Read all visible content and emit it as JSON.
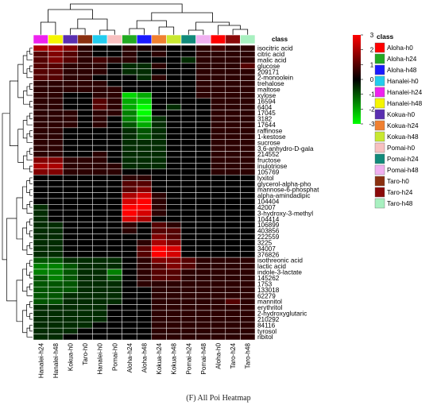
{
  "caption": "(F) All Poi Heatmap",
  "chart_data": {
    "type": "heatmap",
    "title": "",
    "columns": [
      "Hanalei-h24",
      "Hanalei-h48",
      "Kokua-h0",
      "Taro-h0",
      "Hanalei-h0",
      "Pomai-h0",
      "Aloha-h24",
      "Aloha-h48",
      "Kokua-h24",
      "Kokua-h48",
      "Pomai-h24",
      "Pomai-h48",
      "Aloha-h0",
      "Taro-h24",
      "Taro-h48"
    ],
    "column_classes": [
      "Hanalei-h24",
      "Hanalei-h48",
      "Kokua-h0",
      "Taro-h0",
      "Hanalei-h0",
      "Pomai-h0",
      "Aloha-h24",
      "Aloha-h48",
      "Kokua-h24",
      "Kokua-h48",
      "Pomai-h24",
      "Pomai-h48",
      "Aloha-h0",
      "Taro-h24",
      "Taro-h48"
    ],
    "rows": [
      "isocitric acid",
      "citric acid",
      "malic acid",
      "glucose",
      "209171",
      "2-monoolein",
      "trehalose",
      "maltose",
      "xylose",
      "16594",
      "6404",
      "17045",
      "3182",
      "17644",
      "raffinose",
      "1-kestose",
      "sucrose",
      "3,6-anhydro-D-gala",
      "214552",
      "fructose",
      "inulotriose",
      "105769",
      "lyxitol",
      "glycerol-alpha-pho",
      "mannose-6-phosphat",
      "alpha-amindadipic",
      "104404",
      "42007",
      "3-hydroxy-3-methyl",
      "104414",
      "106899",
      "403856",
      "222559",
      "3225",
      "34007",
      "376826",
      "isothreonic acid",
      "lactic acid",
      "indole-3-lactate",
      "145262",
      "1753",
      "133018",
      "62279",
      "mannitol",
      "erythritol",
      "2-hydroxyglutaric",
      "210292",
      "84116",
      "tyrosol",
      "ribitol"
    ],
    "values": [
      [
        2.0,
        2.0,
        1.5,
        0.5,
        0.0,
        0.0,
        0.5,
        0.3,
        0.3,
        0.0,
        0.0,
        0.5,
        0.8,
        0.5,
        0.5
      ],
      [
        1.0,
        1.5,
        1.0,
        0.5,
        0.0,
        0.0,
        0.5,
        0.0,
        0.5,
        0.0,
        0.0,
        0.5,
        0.5,
        0.5,
        0.5
      ],
      [
        1.0,
        1.5,
        1.0,
        0.5,
        0.8,
        0.5,
        0.5,
        0.0,
        0.0,
        0.0,
        -0.5,
        0.5,
        0.5,
        0.5,
        0.5
      ],
      [
        1.0,
        1.0,
        0.5,
        0.5,
        0.5,
        0.0,
        -0.5,
        -0.5,
        0.5,
        0.0,
        0.0,
        0.5,
        0.5,
        0.5,
        1.0
      ],
      [
        1.0,
        1.0,
        0.5,
        0.5,
        0.5,
        0.0,
        -0.5,
        -0.5,
        0.0,
        0.0,
        0.0,
        0.5,
        0.5,
        0.5,
        0.5
      ],
      [
        1.0,
        1.0,
        0.5,
        0.5,
        0.0,
        0.0,
        0.0,
        -0.5,
        0.5,
        0.0,
        0.0,
        0.5,
        0.5,
        0.5,
        0.5
      ],
      [
        0.5,
        0.5,
        0.5,
        0.5,
        0.5,
        0.0,
        0.0,
        0.0,
        0.0,
        0.0,
        0.0,
        0.5,
        0.5,
        0.5,
        0.5
      ],
      [
        0.5,
        0.5,
        0.5,
        0.5,
        0.5,
        0.5,
        0.0,
        0.0,
        0.0,
        0.0,
        0.0,
        0.5,
        0.5,
        0.5,
        0.5
      ],
      [
        0.5,
        0.5,
        0.0,
        0.0,
        0.5,
        0.5,
        -2.5,
        -2.0,
        0.0,
        0.0,
        0.0,
        0.5,
        0.5,
        0.5,
        0.5
      ],
      [
        0.5,
        0.5,
        0.0,
        0.0,
        1.0,
        0.5,
        -2.0,
        -2.5,
        0.0,
        0.0,
        0.0,
        0.0,
        0.5,
        0.5,
        0.5
      ],
      [
        0.5,
        0.5,
        0.0,
        0.0,
        1.0,
        0.5,
        -2.0,
        -3.0,
        0.0,
        -0.5,
        0.0,
        0.0,
        0.5,
        0.5,
        0.5
      ],
      [
        0.5,
        0.5,
        0.5,
        0.0,
        0.5,
        0.5,
        -1.5,
        -3.0,
        0.0,
        0.0,
        0.0,
        0.0,
        0.5,
        0.5,
        0.5
      ],
      [
        0.5,
        0.5,
        0.5,
        0.0,
        0.5,
        0.0,
        -1.5,
        -2.5,
        -0.5,
        0.0,
        0.0,
        0.0,
        0.5,
        0.5,
        0.5
      ],
      [
        0.5,
        0.5,
        0.5,
        0.0,
        0.5,
        0.0,
        -1.0,
        -2.0,
        -0.5,
        0.0,
        0.0,
        0.0,
        0.5,
        0.5,
        0.5
      ],
      [
        0.5,
        0.5,
        0.0,
        0.0,
        0.0,
        0.0,
        -0.5,
        -1.0,
        -0.5,
        0.0,
        0.0,
        0.0,
        0.5,
        0.5,
        0.5
      ],
      [
        0.5,
        0.5,
        0.0,
        0.0,
        0.0,
        0.0,
        -0.5,
        -1.0,
        -0.5,
        0.0,
        0.0,
        0.0,
        0.5,
        0.5,
        0.5
      ],
      [
        0.5,
        0.5,
        0.0,
        0.0,
        0.0,
        0.0,
        -0.5,
        -0.5,
        -0.5,
        0.0,
        0.0,
        0.0,
        0.5,
        0.5,
        0.5
      ],
      [
        0.5,
        0.5,
        0.0,
        0.0,
        0.0,
        0.0,
        -0.5,
        -0.5,
        -0.5,
        0.0,
        0.0,
        0.0,
        0.5,
        0.5,
        0.5
      ],
      [
        0.5,
        0.5,
        0.0,
        0.0,
        0.5,
        0.0,
        -0.5,
        -0.5,
        -0.5,
        0.0,
        0.0,
        0.0,
        0.5,
        0.5,
        0.5
      ],
      [
        1.5,
        1.5,
        0.5,
        0.5,
        0.5,
        0.0,
        -0.5,
        -0.5,
        -0.5,
        0.0,
        0.0,
        0.0,
        0.5,
        0.5,
        0.5
      ],
      [
        2.0,
        2.0,
        0.5,
        0.5,
        0.5,
        0.5,
        -0.5,
        -0.5,
        -0.5,
        0.0,
        0.0,
        0.0,
        0.5,
        0.5,
        0.5
      ],
      [
        1.5,
        1.5,
        0.5,
        0.5,
        0.5,
        0.5,
        0.0,
        0.0,
        0.0,
        0.0,
        0.0,
        0.0,
        0.5,
        0.5,
        0.5
      ],
      [
        0.0,
        0.0,
        0.0,
        0.0,
        0.0,
        0.0,
        0.5,
        0.5,
        0.0,
        0.0,
        0.0,
        0.0,
        0.0,
        0.0,
        0.0
      ],
      [
        0.0,
        0.0,
        0.0,
        0.0,
        0.0,
        0.0,
        1.0,
        1.0,
        0.0,
        0.0,
        0.0,
        0.0,
        0.0,
        0.0,
        0.0
      ],
      [
        0.0,
        0.0,
        0.0,
        0.0,
        0.0,
        0.0,
        1.0,
        1.5,
        0.0,
        0.0,
        0.0,
        0.0,
        0.0,
        0.0,
        0.0
      ],
      [
        0.0,
        0.0,
        0.0,
        0.0,
        0.0,
        0.0,
        2.0,
        2.5,
        0.5,
        0.0,
        0.0,
        0.0,
        0.0,
        0.0,
        0.0
      ],
      [
        0.0,
        0.0,
        0.0,
        0.0,
        0.0,
        0.0,
        2.5,
        3.0,
        0.5,
        0.0,
        0.0,
        0.0,
        0.0,
        0.0,
        0.0
      ],
      [
        -0.5,
        0.0,
        0.0,
        0.0,
        0.0,
        0.0,
        3.0,
        3.0,
        0.5,
        0.0,
        0.0,
        0.0,
        0.0,
        0.0,
        0.0
      ],
      [
        -0.5,
        0.0,
        0.0,
        0.0,
        0.0,
        0.0,
        3.0,
        2.5,
        0.5,
        0.0,
        0.0,
        0.0,
        0.0,
        0.0,
        0.0
      ],
      [
        -0.5,
        0.0,
        0.0,
        0.0,
        0.0,
        0.0,
        2.5,
        2.0,
        0.0,
        0.0,
        0.0,
        0.0,
        0.0,
        0.0,
        0.0
      ],
      [
        -0.5,
        -0.5,
        0.0,
        0.0,
        0.0,
        0.0,
        0.5,
        0.0,
        1.0,
        0.5,
        0.0,
        0.0,
        0.0,
        0.0,
        0.0
      ],
      [
        -0.5,
        -0.5,
        0.0,
        0.0,
        0.0,
        0.0,
        0.5,
        0.0,
        1.0,
        1.0,
        0.0,
        0.0,
        0.0,
        0.0,
        0.0
      ],
      [
        -0.5,
        -0.5,
        0.0,
        0.0,
        0.0,
        0.0,
        0.0,
        0.0,
        1.5,
        1.0,
        0.0,
        0.0,
        0.0,
        0.0,
        0.0
      ],
      [
        -0.5,
        -0.5,
        0.0,
        0.0,
        0.0,
        0.0,
        0.0,
        0.5,
        2.0,
        1.5,
        0.0,
        0.0,
        0.0,
        0.0,
        0.0
      ],
      [
        -0.5,
        -0.5,
        0.0,
        0.0,
        0.0,
        0.0,
        0.0,
        1.0,
        3.0,
        2.5,
        0.0,
        0.0,
        0.0,
        0.0,
        0.0
      ],
      [
        -0.5,
        -0.5,
        0.0,
        0.0,
        0.0,
        0.0,
        0.0,
        1.0,
        3.0,
        2.5,
        0.0,
        0.0,
        0.0,
        0.0,
        0.0
      ],
      [
        -1.0,
        -1.0,
        -0.5,
        -0.5,
        -0.5,
        -0.5,
        0.0,
        0.5,
        1.5,
        1.5,
        1.0,
        0.5,
        0.5,
        0.5,
        0.5
      ],
      [
        -1.5,
        -1.5,
        -1.0,
        -0.5,
        -0.5,
        -0.5,
        0.0,
        0.5,
        1.0,
        1.5,
        1.0,
        0.5,
        0.5,
        0.5,
        0.5
      ],
      [
        -1.5,
        -1.5,
        -1.0,
        -0.5,
        -0.5,
        -1.5,
        0.0,
        0.5,
        1.0,
        1.0,
        0.5,
        0.5,
        0.5,
        0.5,
        0.5
      ],
      [
        -1.0,
        -1.5,
        -1.0,
        -0.5,
        -0.5,
        -1.0,
        0.0,
        0.5,
        1.0,
        1.0,
        0.5,
        0.5,
        0.5,
        0.5,
        0.5
      ],
      [
        -1.0,
        -1.0,
        -1.0,
        -0.5,
        -0.5,
        -0.5,
        0.0,
        0.5,
        0.5,
        0.5,
        0.5,
        0.5,
        0.5,
        0.5,
        0.5
      ],
      [
        -1.0,
        -1.0,
        -1.0,
        -0.5,
        -0.5,
        -0.5,
        0.0,
        0.0,
        0.5,
        0.5,
        0.5,
        0.5,
        0.5,
        0.5,
        0.5
      ],
      [
        -1.0,
        -1.0,
        -0.5,
        -0.5,
        -0.5,
        -0.5,
        0.0,
        0.0,
        0.5,
        0.5,
        0.5,
        0.5,
        0.5,
        0.5,
        0.5
      ],
      [
        -1.0,
        -1.0,
        -0.5,
        -0.5,
        -0.5,
        -0.5,
        0.0,
        0.0,
        0.5,
        0.5,
        0.5,
        0.5,
        0.5,
        1.0,
        0.5
      ],
      [
        -0.5,
        -0.5,
        -0.5,
        -0.5,
        -0.5,
        0.0,
        0.0,
        0.0,
        0.5,
        0.5,
        0.5,
        0.5,
        0.5,
        0.5,
        0.5
      ],
      [
        -0.5,
        -0.5,
        -0.5,
        -0.5,
        -0.5,
        0.0,
        0.0,
        0.0,
        0.5,
        0.5,
        0.5,
        0.5,
        0.5,
        0.5,
        0.5
      ],
      [
        -0.5,
        -0.5,
        -0.5,
        -0.5,
        -0.5,
        0.0,
        0.0,
        0.0,
        0.5,
        0.5,
        0.5,
        0.5,
        0.5,
        0.5,
        0.5
      ],
      [
        -0.5,
        -0.5,
        -0.5,
        -0.5,
        0.0,
        0.0,
        0.0,
        0.0,
        0.5,
        0.5,
        0.5,
        0.5,
        0.5,
        0.5,
        0.5
      ],
      [
        -0.5,
        -0.5,
        -0.5,
        0.0,
        0.0,
        0.0,
        0.0,
        0.0,
        0.5,
        0.5,
        0.5,
        0.5,
        0.5,
        0.5,
        0.5
      ],
      [
        -0.5,
        -0.5,
        0.0,
        0.0,
        0.0,
        0.0,
        0.0,
        0.0,
        0.5,
        0.5,
        0.5,
        0.5,
        0.5,
        0.5,
        0.5
      ]
    ],
    "color_scale": {
      "ticks": [
        3,
        2,
        1,
        0,
        -1,
        -2,
        -3
      ],
      "min": -3,
      "max": 3,
      "low_color": "#00ff00",
      "mid_color": "#000000",
      "high_color": "#ff0000"
    },
    "class_legend": {
      "title": "class",
      "items": [
        {
          "label": "Aloha-h0",
          "color": "#ff0000"
        },
        {
          "label": "Aloha-h24",
          "color": "#22aa22"
        },
        {
          "label": "Aloha-h48",
          "color": "#1a1aff"
        },
        {
          "label": "Hanalei-h0",
          "color": "#22ccee"
        },
        {
          "label": "Hanalei-h24",
          "color": "#ee22ee"
        },
        {
          "label": "Hanalei-h48",
          "color": "#f5f500"
        },
        {
          "label": "Kokua-h0",
          "color": "#5a2fb0"
        },
        {
          "label": "Kokua-h24",
          "color": "#f08030"
        },
        {
          "label": "Kokua-h48",
          "color": "#c8e830"
        },
        {
          "label": "Pomai-h0",
          "color": "#f8c0c0"
        },
        {
          "label": "Pomai-h24",
          "color": "#118a7a"
        },
        {
          "label": "Pomai-h48",
          "color": "#f0b0f0"
        },
        {
          "label": "Taro-h0",
          "color": "#8a3010"
        },
        {
          "label": "Taro-h24",
          "color": "#8a0a0a"
        },
        {
          "label": "Taro-h48",
          "color": "#a8f0c0"
        }
      ]
    },
    "dendrograms": {
      "rows": true,
      "columns": true
    }
  }
}
